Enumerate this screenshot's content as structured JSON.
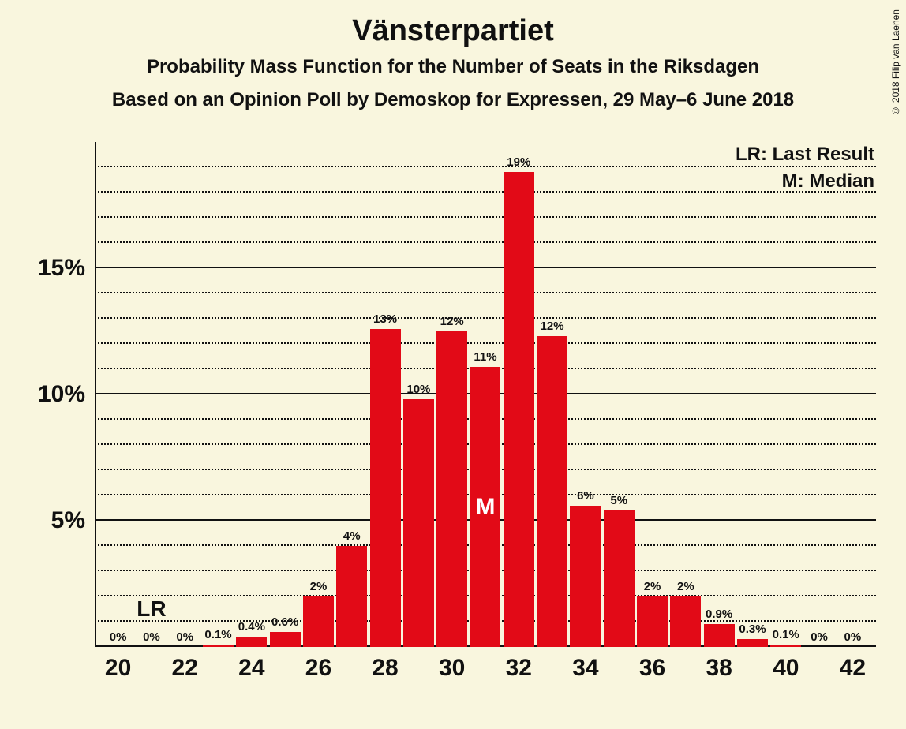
{
  "title": "Vänsterpartiet",
  "subtitle1": "Probability Mass Function for the Number of Seats in the Riksdagen",
  "subtitle2": "Based on an Opinion Poll by Demoskop for Expressen, 29 May–6 June 2018",
  "legend": {
    "lr": "LR: Last Result",
    "m": "M: Median"
  },
  "copyright": "© 2018 Filip van Laenen",
  "chart": {
    "type": "bar",
    "bar_color": "#e20a17",
    "background_color": "#f9f6de",
    "axis_color": "#111111",
    "grid_major_color": "#111111",
    "grid_minor_style": "dotted",
    "title_fontsize": 38,
    "subtitle_fontsize": 24,
    "xlabel_fontsize": 30,
    "ylabel_fontsize": 30,
    "barlabel_fontsize": 15,
    "x_min": 19.3,
    "x_max": 42.7,
    "y_min": 0,
    "y_max": 20,
    "y_major_ticks": [
      5,
      10,
      15
    ],
    "y_minor_step": 1,
    "x_ticks": [
      20,
      22,
      24,
      26,
      28,
      30,
      32,
      34,
      36,
      38,
      40,
      42
    ],
    "bar_width": 0.92,
    "lr_x": 21,
    "median_x": 31,
    "bars": [
      {
        "x": 20,
        "v": 0,
        "label": "0%"
      },
      {
        "x": 21,
        "v": 0,
        "label": "0%"
      },
      {
        "x": 22,
        "v": 0,
        "label": "0%"
      },
      {
        "x": 23,
        "v": 0.1,
        "label": "0.1%"
      },
      {
        "x": 24,
        "v": 0.4,
        "label": "0.4%"
      },
      {
        "x": 25,
        "v": 0.6,
        "label": "0.6%"
      },
      {
        "x": 26,
        "v": 2,
        "label": "2%"
      },
      {
        "x": 27,
        "v": 4,
        "label": "4%"
      },
      {
        "x": 28,
        "v": 13,
        "label": "13%",
        "draw": 12.6
      },
      {
        "x": 29,
        "v": 10,
        "label": "10%",
        "draw": 9.8
      },
      {
        "x": 30,
        "v": 12,
        "label": "12%",
        "draw": 12.5
      },
      {
        "x": 31,
        "v": 11,
        "label": "11%",
        "draw": 11.1
      },
      {
        "x": 32,
        "v": 19,
        "label": "19%",
        "draw": 18.8
      },
      {
        "x": 33,
        "v": 12,
        "label": "12%",
        "draw": 12.3
      },
      {
        "x": 34,
        "v": 6,
        "label": "6%",
        "draw": 5.6
      },
      {
        "x": 35,
        "v": 5,
        "label": "5%",
        "draw": 5.4
      },
      {
        "x": 36,
        "v": 2,
        "label": "2%"
      },
      {
        "x": 37,
        "v": 2,
        "label": "2%"
      },
      {
        "x": 38,
        "v": 0.9,
        "label": "0.9%"
      },
      {
        "x": 39,
        "v": 0.3,
        "label": "0.3%"
      },
      {
        "x": 40,
        "v": 0.1,
        "label": "0.1%"
      },
      {
        "x": 41,
        "v": 0,
        "label": "0%"
      },
      {
        "x": 42,
        "v": 0,
        "label": "0%"
      }
    ]
  }
}
